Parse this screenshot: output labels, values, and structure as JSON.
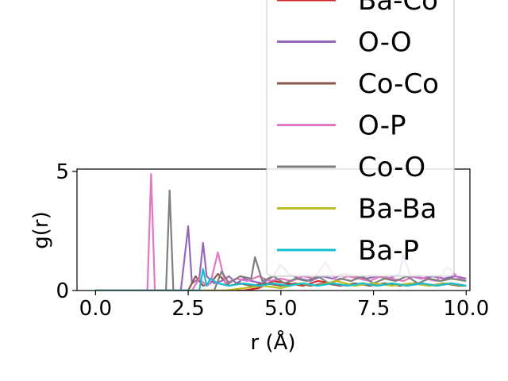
{
  "chart_data": {
    "type": "line",
    "xlabel": "r (Å)",
    "ylabel": "g(r)",
    "xlim": [
      -0.5,
      10.1
    ],
    "ylim": [
      0,
      5.1
    ],
    "xticks": [
      0.0,
      2.5,
      5.0,
      7.5,
      10.0
    ],
    "xtick_labels": [
      "0.0",
      "2.5",
      "5.0",
      "7.5",
      "10.0"
    ],
    "yticks": [
      0,
      5
    ],
    "ytick_labels": [
      "0",
      "5"
    ],
    "grid": false,
    "legend_position": "top-right",
    "series": [
      {
        "name": "Ba-Co",
        "color": "#d62728",
        "x": [
          0,
          2.4,
          2.8,
          3.2,
          3.6,
          4.0,
          4.4,
          4.8,
          5.2,
          5.6,
          6.0,
          6.4,
          6.8,
          7.2,
          7.6,
          8.0,
          8.4,
          8.8,
          9.2,
          9.6,
          10.0
        ],
        "y": [
          0,
          0,
          0,
          0,
          0,
          0,
          0.1,
          0.4,
          0.3,
          0.2,
          0.4,
          0.3,
          0.2,
          0.3,
          0.2,
          0.3,
          0.2,
          0.3,
          0.2,
          0.3,
          0.2
        ]
      },
      {
        "name": "O-O",
        "color": "#9467bd",
        "x": [
          0,
          2.3,
          2.5,
          2.6,
          2.8,
          2.9,
          3.0,
          3.2,
          3.4,
          3.6,
          3.8,
          4.0,
          4.2,
          4.5,
          4.8,
          5.0,
          5.2,
          5.5,
          5.8,
          6.1,
          6.4,
          6.7,
          7.0,
          7.3,
          7.6,
          7.9,
          8.2,
          8.3,
          8.5,
          8.8,
          9.1,
          9.4,
          9.7,
          10.0
        ],
        "y": [
          0,
          0,
          2.7,
          0.3,
          0.5,
          2.0,
          0.6,
          0.3,
          0.4,
          0.6,
          0.3,
          0.5,
          0.4,
          0.3,
          0.6,
          1.1,
          0.7,
          0.5,
          0.4,
          0.6,
          0.5,
          0.7,
          0.6,
          0.5,
          0.6,
          0.5,
          0.7,
          1.5,
          0.6,
          0.5,
          0.6,
          0.5,
          0.6,
          0.5
        ]
      },
      {
        "name": "Co-Co",
        "color": "#8c564b",
        "x": [
          0,
          2.5,
          2.7,
          2.9,
          3.1,
          3.3,
          3.6,
          3.9,
          4.2,
          4.6,
          5.0,
          5.4,
          5.8,
          6.2,
          6.6,
          7.0,
          7.4,
          7.8,
          8.2,
          8.6,
          9.0,
          9.4,
          9.8,
          10.0
        ],
        "y": [
          0,
          0,
          0.6,
          0.2,
          0.3,
          0.7,
          0.2,
          0.3,
          0.2,
          0.3,
          0.2,
          0.3,
          0.2,
          0.3,
          0.2,
          0.3,
          0.2,
          0.3,
          0.2,
          0.3,
          0.2,
          0.3,
          0.2,
          0.2
        ]
      },
      {
        "name": "O-P",
        "color": "#e377c2",
        "x": [
          0,
          1.4,
          1.5,
          1.6,
          2.6,
          2.8,
          3.0,
          3.1,
          3.3,
          3.5,
          3.8,
          4.1,
          4.4,
          4.7,
          5.0,
          5.3,
          5.6,
          5.9,
          6.2,
          6.5,
          6.8,
          7.1,
          7.4,
          7.7,
          8.0,
          8.3,
          8.6,
          8.9,
          9.2,
          9.5,
          9.8,
          10.0
        ],
        "y": [
          0,
          0,
          4.9,
          0,
          0,
          0.5,
          0.2,
          0.3,
          1.6,
          0.3,
          0.5,
          0.4,
          0.6,
          0.4,
          0.5,
          0.4,
          0.6,
          0.5,
          1.2,
          0.4,
          0.6,
          0.5,
          0.4,
          0.6,
          0.5,
          0.4,
          0.6,
          0.5,
          0.4,
          1.0,
          0.5,
          0.4
        ]
      },
      {
        "name": "Co-O",
        "color": "#7f7f7f",
        "x": [
          0,
          1.9,
          2.0,
          2.1,
          3.2,
          3.4,
          3.6,
          3.9,
          4.2,
          4.3,
          4.5,
          4.8,
          5.1,
          5.4,
          5.7,
          6.0,
          6.3,
          6.6,
          6.9,
          7.2,
          7.5,
          7.8,
          8.1,
          8.4,
          8.7,
          9.0,
          9.3,
          9.6,
          10.0
        ],
        "y": [
          0,
          0,
          4.2,
          0,
          0,
          0.8,
          0.3,
          0.6,
          0.5,
          1.4,
          0.4,
          0.6,
          0.3,
          0.5,
          0.4,
          0.6,
          0.3,
          0.5,
          0.4,
          0.6,
          0.3,
          0.5,
          0.4,
          0.6,
          0.3,
          0.5,
          0.4,
          0.5,
          0.4
        ]
      },
      {
        "name": "Ba-Ba",
        "color": "#bcbd22",
        "x": [
          0,
          3.5,
          4.0,
          4.5,
          5.0,
          5.5,
          6.0,
          6.5,
          7.0,
          7.5,
          8.0,
          8.5,
          9.0,
          9.5,
          10.0
        ],
        "y": [
          0,
          0,
          0.1,
          0.2,
          0.1,
          0.3,
          0.2,
          0.4,
          0.2,
          0.3,
          0.2,
          0.3,
          0.2,
          0.3,
          0.2
        ]
      },
      {
        "name": "Ba-P",
        "color": "#17becf",
        "x": [
          0,
          2.8,
          2.9,
          3.0,
          3.1,
          3.3,
          3.6,
          4.0,
          4.4,
          4.8,
          5.2,
          5.6,
          6.0,
          6.4,
          6.8,
          7.2,
          7.6,
          8.0,
          8.4,
          8.8,
          9.2,
          9.6,
          10.0
        ],
        "y": [
          0,
          0,
          0.9,
          0.2,
          0.5,
          0.3,
          0.2,
          0.3,
          0.2,
          0.3,
          0.2,
          0.3,
          0.2,
          0.3,
          0.2,
          0.3,
          0.2,
          0.3,
          0.2,
          0.3,
          0.2,
          0.3,
          0.2
        ]
      }
    ]
  }
}
